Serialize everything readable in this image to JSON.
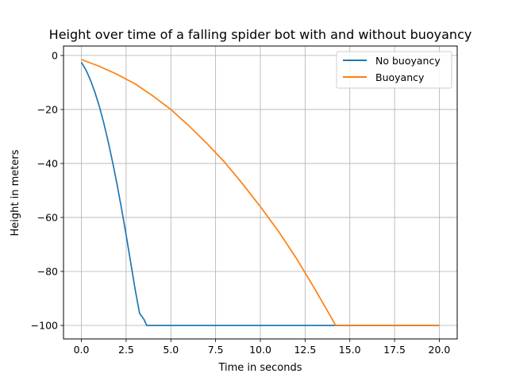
{
  "chart_data": {
    "type": "line",
    "title": "Height over time of a falling spider bot with and without buoyancy",
    "xlabel": "Time in seconds",
    "ylabel": "Height in meters",
    "xlim": [
      -1,
      21
    ],
    "ylim": [
      -105,
      3.5
    ],
    "xticks": [
      0.0,
      2.5,
      5.0,
      7.5,
      10.0,
      12.5,
      15.0,
      17.5,
      20.0
    ],
    "xtick_labels": [
      "0.0",
      "2.5",
      "5.0",
      "7.5",
      "10.0",
      "12.5",
      "15.0",
      "17.5",
      "20.0"
    ],
    "yticks": [
      0,
      -20,
      -40,
      -60,
      -80,
      -100
    ],
    "ytick_labels": [
      "0",
      "−20",
      "−40",
      "−60",
      "−80",
      "−100"
    ],
    "grid": true,
    "legend": "top-right",
    "series": [
      {
        "name": "No buoyancy",
        "color": "#1f77b4",
        "x": [
          0,
          0.25,
          0.5,
          0.75,
          1.0,
          1.25,
          1.5,
          1.75,
          2.0,
          2.25,
          2.5,
          2.75,
          3.0,
          3.25,
          3.5,
          3.65,
          3.8,
          5,
          7.5,
          10,
          12.5,
          15,
          17.5,
          20
        ],
        "y": [
          -2.5,
          -5.3,
          -9.0,
          -13.5,
          -18.8,
          -25.0,
          -32.0,
          -39.7,
          -48.0,
          -57.0,
          -66.5,
          -76.5,
          -86.5,
          -95.5,
          -97.8,
          -100.0,
          -100.0,
          -100.0,
          -100.0,
          -100.0,
          -100.0,
          -100.0,
          -100.0,
          -100.0
        ]
      },
      {
        "name": "Buoyancy",
        "color": "#ff7f0e",
        "x": [
          0,
          1,
          2,
          3,
          4,
          5,
          6,
          7,
          8,
          9,
          10,
          11,
          12,
          13,
          14,
          14.2,
          15,
          17.5,
          20
        ],
        "y": [
          -1.5,
          -4.0,
          -7.0,
          -10.5,
          -15.0,
          -20.0,
          -26.0,
          -32.5,
          -39.5,
          -47.5,
          -56.0,
          -65.0,
          -75.0,
          -86.0,
          -97.5,
          -100.0,
          -100.0,
          -100.0,
          -100.0
        ]
      }
    ]
  }
}
